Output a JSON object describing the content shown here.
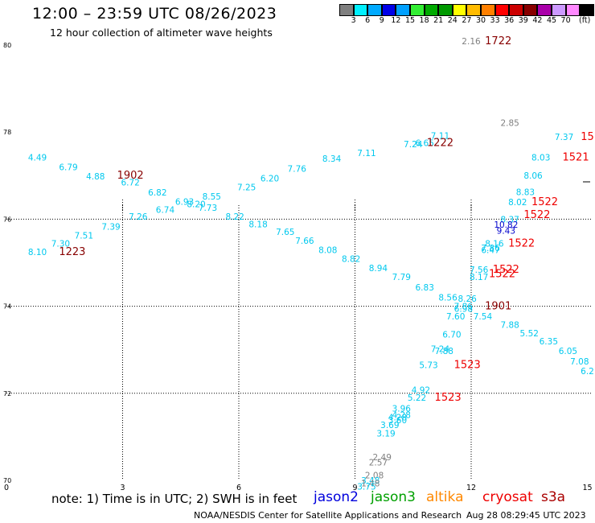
{
  "header": {
    "title": "12:00 – 23:59 UTC 08/26/2023",
    "subtitle": "12 hour collection of altimeter wave heights"
  },
  "colorbar": {
    "unit_label": "(ft)",
    "ticks": [
      "3",
      "6",
      "9",
      "12",
      "15",
      "18",
      "21",
      "24",
      "27",
      "30",
      "33",
      "36",
      "39",
      "42",
      "45",
      "70"
    ],
    "colors": [
      "#7f7f7f",
      "#00f0ff",
      "#00aaff",
      "#0000e8",
      "#00a0ff",
      "#33ee33",
      "#00aa00",
      "#009900",
      "#ffff00",
      "#ffbb00",
      "#ff8000",
      "#ff0000",
      "#cc0000",
      "#880000",
      "#aa00aa",
      "#cc99ff",
      "#ff88ff",
      "#000000"
    ]
  },
  "map": {
    "y_ticks": [
      {
        "label": "80",
        "value": 80
      },
      {
        "label": "78",
        "value": 78
      },
      {
        "label": "76",
        "value": 76
      },
      {
        "label": "74",
        "value": 74
      },
      {
        "label": "72",
        "value": 72
      },
      {
        "label": "70",
        "value": 70
      }
    ],
    "x_ticks": [
      {
        "label": "0",
        "value": 0
      },
      {
        "label": "3",
        "value": 3
      },
      {
        "label": "6",
        "value": 6
      },
      {
        "label": "9",
        "value": 9
      },
      {
        "label": "12",
        "value": 12
      },
      {
        "label": "15",
        "value": 15
      }
    ],
    "colors": {
      "light": "#00c8ee",
      "gray": "#808080",
      "blue": "#0000cc",
      "red": "#ee0000",
      "darkred": "#880000"
    },
    "wave_labels": [
      {
        "t": "2.16",
        "x": 12.0,
        "y": 80.02,
        "c": "gray"
      },
      {
        "t": "2.85",
        "x": 13.0,
        "y": 78.14,
        "c": "gray"
      },
      {
        "t": "7.11",
        "x": 11.2,
        "y": 77.85,
        "c": "light"
      },
      {
        "t": "7.37",
        "x": 14.4,
        "y": 77.82,
        "c": "light"
      },
      {
        "t": "7.24",
        "x": 10.5,
        "y": 77.65,
        "c": "light"
      },
      {
        "t": "6.65",
        "x": 10.8,
        "y": 77.68,
        "c": "light"
      },
      {
        "t": "4.49",
        "x": 0.8,
        "y": 77.35,
        "c": "light"
      },
      {
        "t": "6.79",
        "x": 1.6,
        "y": 77.13,
        "c": "light"
      },
      {
        "t": "7.11",
        "x": 9.3,
        "y": 77.45,
        "c": "light"
      },
      {
        "t": "8.34",
        "x": 8.4,
        "y": 77.32,
        "c": "light"
      },
      {
        "t": "8.03",
        "x": 13.8,
        "y": 77.35,
        "c": "light"
      },
      {
        "t": "4.88",
        "x": 2.3,
        "y": 76.91,
        "c": "light"
      },
      {
        "t": "7.76",
        "x": 7.5,
        "y": 77.09,
        "c": "light"
      },
      {
        "t": "8.06",
        "x": 13.6,
        "y": 76.93,
        "c": "light"
      },
      {
        "t": "6.72",
        "x": 3.2,
        "y": 76.77,
        "c": "light"
      },
      {
        "t": "6.20",
        "x": 6.8,
        "y": 76.87,
        "c": "light"
      },
      {
        "t": "7.25",
        "x": 6.2,
        "y": 76.66,
        "c": "light"
      },
      {
        "t": "6.82",
        "x": 3.9,
        "y": 76.54,
        "c": "light"
      },
      {
        "t": "8.83",
        "x": 13.4,
        "y": 76.55,
        "c": "light"
      },
      {
        "t": "8.55",
        "x": 5.3,
        "y": 76.45,
        "c": "light"
      },
      {
        "t": "8.02",
        "x": 13.2,
        "y": 76.32,
        "c": "light"
      },
      {
        "t": "6.93",
        "x": 4.6,
        "y": 76.33,
        "c": "light"
      },
      {
        "t": "8.20",
        "x": 4.9,
        "y": 76.28,
        "c": "light"
      },
      {
        "t": "7.73",
        "x": 5.2,
        "y": 76.19,
        "c": "light"
      },
      {
        "t": "6.74",
        "x": 4.1,
        "y": 76.15,
        "c": "light"
      },
      {
        "t": "7.26",
        "x": 3.4,
        "y": 75.99,
        "c": "light"
      },
      {
        "t": "8.22",
        "x": 5.9,
        "y": 75.99,
        "c": "light"
      },
      {
        "t": "8.37",
        "x": 13.0,
        "y": 75.92,
        "c": "light"
      },
      {
        "t": "10.82",
        "x": 12.9,
        "y": 75.8,
        "c": "blue"
      },
      {
        "t": "7.39",
        "x": 2.7,
        "y": 75.76,
        "c": "light"
      },
      {
        "t": "8.18",
        "x": 6.5,
        "y": 75.81,
        "c": "light"
      },
      {
        "t": "9.43",
        "x": 12.9,
        "y": 75.67,
        "c": "blue"
      },
      {
        "t": "7.65",
        "x": 7.2,
        "y": 75.64,
        "c": "light"
      },
      {
        "t": "7.51",
        "x": 2.0,
        "y": 75.55,
        "c": "light"
      },
      {
        "t": "7.66",
        "x": 7.7,
        "y": 75.43,
        "c": "light"
      },
      {
        "t": "7.30",
        "x": 1.4,
        "y": 75.37,
        "c": "light"
      },
      {
        "t": "8.16",
        "x": 12.6,
        "y": 75.37,
        "c": "light"
      },
      {
        "t": "7.86",
        "x": 12.5,
        "y": 75.27,
        "c": "light"
      },
      {
        "t": "6.47",
        "x": 12.5,
        "y": 75.22,
        "c": "light"
      },
      {
        "t": "8.08",
        "x": 8.3,
        "y": 75.22,
        "c": "light"
      },
      {
        "t": "8.10",
        "x": 0.8,
        "y": 75.18,
        "c": "light"
      },
      {
        "t": "8.82",
        "x": 8.9,
        "y": 75.02,
        "c": "light"
      },
      {
        "t": "7.56",
        "x": 12.2,
        "y": 74.77,
        "c": "light"
      },
      {
        "t": "8.94",
        "x": 9.6,
        "y": 74.81,
        "c": "light"
      },
      {
        "t": "8.17",
        "x": 12.2,
        "y": 74.6,
        "c": "light"
      },
      {
        "t": "7.79",
        "x": 10.2,
        "y": 74.6,
        "c": "light"
      },
      {
        "t": "6.83",
        "x": 10.8,
        "y": 74.36,
        "c": "light"
      },
      {
        "t": "8.56",
        "x": 11.4,
        "y": 74.13,
        "c": "light"
      },
      {
        "t": "8.26",
        "x": 11.9,
        "y": 74.1,
        "c": "light"
      },
      {
        "t": "7.86",
        "x": 11.8,
        "y": 73.93,
        "c": "light"
      },
      {
        "t": "6.98",
        "x": 11.8,
        "y": 73.87,
        "c": "light"
      },
      {
        "t": "7.60",
        "x": 11.6,
        "y": 73.7,
        "c": "light"
      },
      {
        "t": "7.54",
        "x": 12.3,
        "y": 73.7,
        "c": "light"
      },
      {
        "t": "7.88",
        "x": 13.0,
        "y": 73.5,
        "c": "light"
      },
      {
        "t": "5.52",
        "x": 13.5,
        "y": 73.31,
        "c": "light"
      },
      {
        "t": "6.70",
        "x": 11.5,
        "y": 73.28,
        "c": "light"
      },
      {
        "t": "6.35",
        "x": 14.0,
        "y": 73.12,
        "c": "light"
      },
      {
        "t": "7.24",
        "x": 11.2,
        "y": 72.95,
        "c": "light"
      },
      {
        "t": "7.88",
        "x": 11.3,
        "y": 72.9,
        "c": "light"
      },
      {
        "t": "6.05",
        "x": 14.5,
        "y": 72.9,
        "c": "light"
      },
      {
        "t": "7.08",
        "x": 14.8,
        "y": 72.66,
        "c": "light"
      },
      {
        "t": "5.73",
        "x": 10.9,
        "y": 72.58,
        "c": "light"
      },
      {
        "t": "6.2",
        "x": 15.0,
        "y": 72.44,
        "c": "light"
      },
      {
        "t": "4.92",
        "x": 10.7,
        "y": 72.01,
        "c": "light"
      },
      {
        "t": "5.22",
        "x": 10.6,
        "y": 71.83,
        "c": "light"
      },
      {
        "t": "3.96",
        "x": 10.2,
        "y": 71.58,
        "c": "light"
      },
      {
        "t": "4.28",
        "x": 10.2,
        "y": 71.43,
        "c": "light"
      },
      {
        "t": "4.28",
        "x": 10.1,
        "y": 71.38,
        "c": "light"
      },
      {
        "t": "3.60",
        "x": 10.1,
        "y": 71.31,
        "c": "light"
      },
      {
        "t": "3.69",
        "x": 9.9,
        "y": 71.2,
        "c": "light"
      },
      {
        "t": "3.19",
        "x": 9.8,
        "y": 71.01,
        "c": "light"
      },
      {
        "t": "2.49",
        "x": 9.7,
        "y": 70.46,
        "c": "gray"
      },
      {
        "t": "2.57",
        "x": 9.6,
        "y": 70.34,
        "c": "gray"
      },
      {
        "t": "2.08",
        "x": 9.5,
        "y": 70.05,
        "c": "gray"
      },
      {
        "t": "3.48",
        "x": 9.4,
        "y": 69.93,
        "c": "light"
      },
      {
        "t": "1.48",
        "x": 9.4,
        "y": 69.86,
        "c": "gray"
      },
      {
        "t": "3.75",
        "x": 9.3,
        "y": 69.79,
        "c": "light"
      }
    ],
    "track_labels": [
      {
        "t": "1722",
        "x": 12.7,
        "y": 80.02,
        "c": "darkred"
      },
      {
        "t": "1222",
        "x": 11.2,
        "y": 77.68,
        "c": "darkred"
      },
      {
        "t": "15",
        "x": 15.0,
        "y": 77.82,
        "c": "red"
      },
      {
        "t": "1521",
        "x": 14.7,
        "y": 77.35,
        "c": "red"
      },
      {
        "t": "1902",
        "x": 3.2,
        "y": 76.93,
        "c": "darkred"
      },
      {
        "t": "1522",
        "x": 13.9,
        "y": 76.32,
        "c": "red"
      },
      {
        "t": "1522",
        "x": 13.7,
        "y": 76.03,
        "c": "red"
      },
      {
        "t": "1522",
        "x": 13.3,
        "y": 75.37,
        "c": "red"
      },
      {
        "t": "1223",
        "x": 1.7,
        "y": 75.18,
        "c": "darkred"
      },
      {
        "t": "1522",
        "x": 12.9,
        "y": 74.77,
        "c": "red"
      },
      {
        "t": "1522",
        "x": 12.8,
        "y": 74.67,
        "c": "red"
      },
      {
        "t": "1901",
        "x": 12.7,
        "y": 73.93,
        "c": "darkred"
      },
      {
        "t": "1523",
        "x": 11.9,
        "y": 72.58,
        "c": "red"
      },
      {
        "t": "1523",
        "x": 11.4,
        "y": 71.83,
        "c": "red"
      }
    ]
  },
  "footer": {
    "note": "note:  1) Time is in UTC;  2) SWH is in feet",
    "satellites": [
      {
        "name": "jason2",
        "color": "#0000dd",
        "left": 390
      },
      {
        "name": "jason3",
        "color": "#00a000",
        "left": 461
      },
      {
        "name": "altika",
        "color": "#ff8800",
        "left": 530
      },
      {
        "name": "cryosat",
        "color": "#ee0000",
        "left": 600
      },
      {
        "name": "s3a",
        "color": "#aa0000",
        "left": 673
      }
    ],
    "credit": "NOAA/NESDIS Center for Satellite Applications and Research",
    "timestamp": "Aug 28 08:29:45 UTC 2023"
  }
}
